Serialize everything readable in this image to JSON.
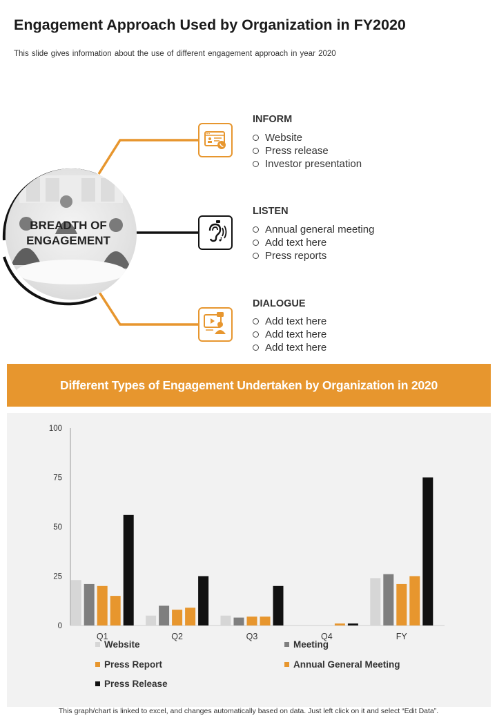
{
  "title": "Engagement Approach Used by Organization in FY2020",
  "subtitle": "This slide gives information  about the use of different  engagement  approach  in year 2020",
  "center_label_line1": "BREADTH OF",
  "center_label_line2": "ENGAGEMENT",
  "groups": [
    {
      "title": "INFORM",
      "icon": "presentation-phone-icon",
      "items": [
        "Website",
        "Press release",
        "Investor  presentation"
      ]
    },
    {
      "title": "LISTEN",
      "icon": "ear-sound-icon",
      "items": [
        "Annual  general meeting",
        "Add text here",
        "Press reports"
      ]
    },
    {
      "title": "DIALOGUE",
      "icon": "video-chat-icon",
      "items": [
        "Add text here",
        "Add text here",
        "Add text here"
      ]
    }
  ],
  "colors": {
    "accent": "#e7962e",
    "dark": "#111111",
    "light_gray": "#d6d6d6",
    "mid_gray": "#7f7f7f",
    "panel": "#f2f2f2"
  },
  "banner_title": "Different Types of Engagement Undertaken by Organization in 2020",
  "chart_data": {
    "type": "bar",
    "title": "",
    "xlabel": "",
    "ylabel": "",
    "ylim": [
      0,
      100
    ],
    "yticks": [
      0,
      25,
      50,
      75,
      100
    ],
    "categories": [
      "Q1",
      "Q2",
      "Q3",
      "Q4",
      "FY"
    ],
    "series": [
      {
        "name": "Website",
        "color": "#d6d6d6",
        "values": [
          23,
          5,
          5,
          0,
          24
        ]
      },
      {
        "name": "Meeting",
        "color": "#7f7f7f",
        "values": [
          21,
          10,
          4,
          0,
          26
        ]
      },
      {
        "name": "Press Report",
        "color": "#e7962e",
        "values": [
          20,
          8,
          4.5,
          0,
          21
        ]
      },
      {
        "name": "Annual General Meeting",
        "color": "#e7962e",
        "values": [
          15,
          9,
          4.5,
          1,
          25
        ]
      },
      {
        "name": "Press Release",
        "color": "#111111",
        "values": [
          56,
          25,
          20,
          1,
          75
        ]
      }
    ],
    "grid": false,
    "legend_position": "bottom"
  },
  "footer": "This graph/chart is linked to excel,  and changes automatically based on data. Just left click on it and select “Edit Data”."
}
